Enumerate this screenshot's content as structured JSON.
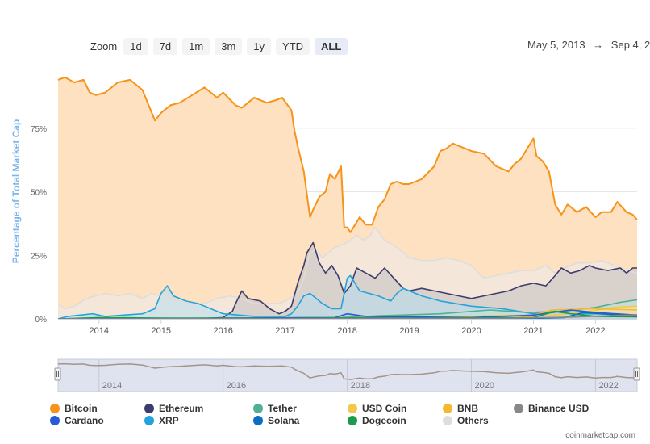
{
  "toolbar": {
    "zoom_label": "Zoom",
    "buttons": [
      "1d",
      "7d",
      "1m",
      "3m",
      "1y",
      "YTD",
      "ALL"
    ],
    "active": "ALL",
    "range_from": "May 5, 2013",
    "range_arrow": "→",
    "range_to": "Sep 4, 2"
  },
  "credit": "coinmarketcap.com",
  "chart_data": {
    "type": "area",
    "ylabel": "Percentage of Total Market Cap",
    "y_ticks": [
      "0%",
      "25%",
      "50%",
      "75%"
    ],
    "y_tick_values": [
      0,
      25,
      50,
      75
    ],
    "ylim": [
      0,
      100
    ],
    "x_range": [
      2013.34,
      2022.67
    ],
    "x_ticks": [
      "2014",
      "2015",
      "2016",
      "2017",
      "2018",
      "2019",
      "2020",
      "2021",
      "2022"
    ],
    "x_tick_values": [
      2014,
      2015,
      2016,
      2017,
      2018,
      2019,
      2020,
      2021,
      2022
    ],
    "navigator_ticks": [
      "2014",
      "2016",
      "2018",
      "2020",
      "2022"
    ],
    "navigator_tick_values": [
      2014,
      2016,
      2018,
      2020,
      2022
    ],
    "grid": true,
    "legend_position": "bottom",
    "series": [
      {
        "name": "Bitcoin",
        "color": "#f7931a",
        "fill": "#fde1c0",
        "x": [
          2013.34,
          2013.45,
          2013.6,
          2013.75,
          2013.85,
          2013.95,
          2014.1,
          2014.3,
          2014.5,
          2014.7,
          2014.9,
          2015.0,
          2015.15,
          2015.3,
          2015.5,
          2015.7,
          2015.9,
          2016.0,
          2016.2,
          2016.3,
          2016.5,
          2016.7,
          2016.85,
          2016.95,
          2017.1,
          2017.15,
          2017.2,
          2017.3,
          2017.4,
          2017.45,
          2017.55,
          2017.65,
          2017.72,
          2017.8,
          2017.9,
          2017.95,
          2018.0,
          2018.05,
          2018.2,
          2018.3,
          2018.4,
          2018.5,
          2018.6,
          2018.7,
          2018.8,
          2018.9,
          2019.0,
          2019.2,
          2019.4,
          2019.5,
          2019.6,
          2019.7,
          2019.8,
          2019.9,
          2020.0,
          2020.2,
          2020.4,
          2020.6,
          2020.7,
          2020.8,
          2020.9,
          2021.0,
          2021.05,
          2021.15,
          2021.25,
          2021.35,
          2021.45,
          2021.55,
          2021.7,
          2021.85,
          2022.0,
          2022.1,
          2022.25,
          2022.35,
          2022.5,
          2022.6,
          2022.67
        ],
        "values": [
          94,
          95,
          93,
          94,
          89,
          88,
          89,
          93,
          94,
          90,
          78,
          81,
          84,
          85,
          88,
          91,
          87,
          89,
          84,
          83,
          87,
          85,
          86,
          87,
          82,
          74,
          68,
          58,
          40,
          43,
          48,
          50,
          57,
          55,
          60,
          36,
          36,
          34,
          40,
          37,
          37,
          44,
          47,
          53,
          54,
          53,
          53,
          55,
          60,
          66,
          67,
          69,
          68,
          67,
          66,
          65,
          60,
          58,
          61,
          63,
          67,
          71,
          64,
          62,
          58,
          45,
          41,
          45,
          42,
          44,
          40,
          42,
          42,
          46,
          42,
          41,
          39
        ]
      },
      {
        "name": "Ethereum",
        "color": "#3c3c6e",
        "fill": "#c2bfbf",
        "x": [
          2013.34,
          2015.55,
          2016.0,
          2016.15,
          2016.2,
          2016.3,
          2016.4,
          2016.6,
          2016.75,
          2016.9,
          2017.0,
          2017.1,
          2017.2,
          2017.3,
          2017.35,
          2017.45,
          2017.55,
          2017.65,
          2017.75,
          2017.85,
          2017.95,
          2018.05,
          2018.15,
          2018.3,
          2018.45,
          2018.6,
          2018.75,
          2018.9,
          2019.0,
          2019.2,
          2019.4,
          2019.6,
          2019.8,
          2020.0,
          2020.2,
          2020.4,
          2020.6,
          2020.8,
          2021.0,
          2021.2,
          2021.35,
          2021.45,
          2021.6,
          2021.75,
          2021.9,
          2022.0,
          2022.2,
          2022.4,
          2022.5,
          2022.6,
          2022.67
        ],
        "values": [
          0,
          0,
          0.5,
          3,
          6,
          11,
          8,
          7,
          4,
          2,
          3,
          5,
          14,
          21,
          26,
          30,
          22,
          18,
          21,
          17,
          10,
          13,
          20,
          18,
          16,
          20,
          16,
          12,
          11,
          12,
          11,
          10,
          9,
          8,
          9,
          10,
          11,
          13,
          14,
          13,
          17,
          20,
          18,
          19,
          21,
          20,
          19,
          20,
          18,
          20,
          20
        ]
      },
      {
        "name": "Tether",
        "color": "#50af95",
        "fill": "#bde3d8",
        "x": [
          2013.34,
          2017.9,
          2018.5,
          2019.5,
          2020.3,
          2020.9,
          2021.5,
          2022.0,
          2022.4,
          2022.67
        ],
        "values": [
          0,
          0.5,
          1.2,
          2,
          3.5,
          2.5,
          3,
          4.5,
          6.5,
          7.5
        ]
      },
      {
        "name": "USD Coin",
        "color": "#f2c94c",
        "fill": "#f7e6a8",
        "x": [
          2013.34,
          2020.6,
          2021.3,
          2021.8,
          2022.3,
          2022.67
        ],
        "values": [
          0,
          0.3,
          1.5,
          2.5,
          4.5,
          5
        ]
      },
      {
        "name": "BNB",
        "color": "#f3ba2f",
        "fill": "#f8dca0",
        "x": [
          2013.34,
          2019.0,
          2020.0,
          2021.0,
          2021.3,
          2022.0,
          2022.67
        ],
        "values": [
          0,
          0.5,
          1,
          1.5,
          3.5,
          4,
          3.5
        ]
      },
      {
        "name": "Binance USD",
        "color": "#888888",
        "fill": "#d4d4d4",
        "x": [
          2013.34,
          2020.5,
          2021.5,
          2022.67
        ],
        "values": [
          0,
          0.2,
          0.6,
          1.6
        ]
      },
      {
        "name": "Cardano",
        "color": "#2a5bd7",
        "fill": "#b9c9ee",
        "x": [
          2013.34,
          2017.8,
          2018.0,
          2018.3,
          2020.0,
          2021.0,
          2021.6,
          2022.0,
          2022.67
        ],
        "values": [
          0,
          0.5,
          2,
          1,
          0.5,
          1.5,
          3.5,
          2.5,
          1.5
        ]
      },
      {
        "name": "XRP",
        "color": "#23a3dd",
        "fill": "#b6dff1",
        "x": [
          2013.34,
          2013.5,
          2013.9,
          2014.1,
          2014.4,
          2014.7,
          2014.9,
          2015.0,
          2015.1,
          2015.2,
          2015.4,
          2015.6,
          2016.0,
          2016.5,
          2017.0,
          2017.1,
          2017.2,
          2017.3,
          2017.4,
          2017.5,
          2017.6,
          2017.75,
          2017.9,
          2018.0,
          2018.05,
          2018.2,
          2018.5,
          2018.7,
          2018.8,
          2018.9,
          2019.2,
          2019.5,
          2020.0,
          2020.5,
          2021.0,
          2021.3,
          2021.6,
          2022.0,
          2022.67
        ],
        "values": [
          0,
          1,
          2,
          1,
          1.5,
          2,
          4,
          10,
          13,
          9,
          7,
          6,
          2,
          1,
          1,
          2,
          5,
          9,
          10,
          8,
          6,
          4,
          4,
          16,
          17,
          11,
          9,
          7,
          10,
          12,
          9,
          7,
          5,
          4,
          2,
          3,
          2,
          2,
          1.5
        ]
      },
      {
        "name": "Solana",
        "color": "#0a6fc2",
        "fill": "#a9cbe8",
        "x": [
          2013.34,
          2020.9,
          2021.5,
          2021.8,
          2022.1,
          2022.67
        ],
        "values": [
          0,
          0.1,
          0.5,
          2.5,
          2,
          1
        ]
      },
      {
        "name": "Dogecoin",
        "color": "#1a9c4b",
        "fill": "#b4e0c3",
        "x": [
          2013.34,
          2014.0,
          2015.0,
          2017.0,
          2018.0,
          2019.0,
          2021.0,
          2021.35,
          2021.6,
          2022.0,
          2022.67
        ],
        "values": [
          0,
          0.5,
          0.3,
          0.2,
          0.4,
          0.3,
          0.5,
          3,
          2,
          1,
          0.8
        ]
      },
      {
        "name": "Others",
        "color": "#dddddd",
        "fill": "#ececec",
        "x": [
          2013.34,
          2013.45,
          2013.6,
          2013.8,
          2013.95,
          2014.1,
          2014.3,
          2014.5,
          2014.7,
          2014.85,
          2015.0,
          2015.3,
          2015.5,
          2015.7,
          2015.9,
          2016.1,
          2016.3,
          2016.5,
          2016.7,
          2016.9,
          2017.0,
          2017.2,
          2017.3,
          2017.4,
          2017.5,
          2017.6,
          2017.7,
          2017.8,
          2017.9,
          2018.0,
          2018.15,
          2018.25,
          2018.35,
          2018.45,
          2018.6,
          2018.8,
          2019.0,
          2019.2,
          2019.4,
          2019.6,
          2019.8,
          2020.0,
          2020.2,
          2020.4,
          2020.6,
          2020.8,
          2021.0,
          2021.2,
          2021.35,
          2021.5,
          2021.7,
          2021.9,
          2022.1,
          2022.3,
          2022.5,
          2022.67
        ],
        "values": [
          6,
          4,
          5,
          8,
          9,
          10,
          9,
          10,
          8,
          10,
          9,
          7,
          6,
          6,
          8,
          9,
          8,
          6,
          6,
          6,
          7,
          10,
          16,
          26,
          27,
          24,
          26,
          28,
          29,
          30,
          33,
          31,
          32,
          36,
          31,
          28,
          24,
          23,
          23,
          24,
          23,
          21,
          16,
          17,
          18,
          19,
          19,
          21,
          18,
          20,
          22,
          22,
          23,
          21,
          19,
          18
        ]
      }
    ]
  }
}
